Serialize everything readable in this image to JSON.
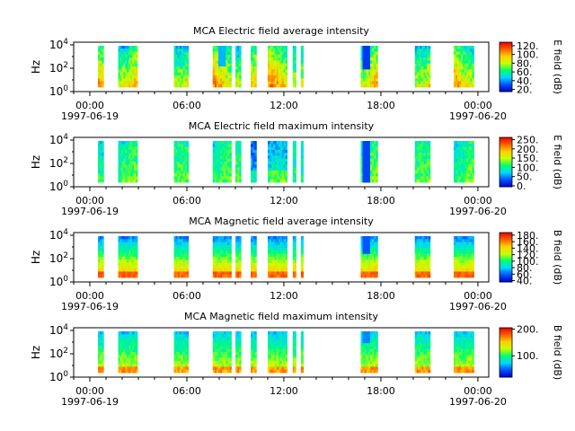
{
  "colorscale": [
    "#0000d0",
    "#0050ff",
    "#00d8ff",
    "#00ff70",
    "#c8ff00",
    "#ffd000",
    "#ff6000",
    "#e80000"
  ],
  "chart_data": [
    {
      "type": "heatmap",
      "title": "MCA  Electric field average intensity",
      "ylabel": "Hz",
      "y_scale": "log",
      "y_ticks": [
        {
          "exp": "0"
        },
        {
          "exp": "2"
        },
        {
          "exp": "4"
        }
      ],
      "x_ticks": [
        "00:00",
        "06:00",
        "12:00",
        "18:00",
        "00:00"
      ],
      "x_dates": [
        "1997-06-19",
        "1997-06-20"
      ],
      "x_range": [
        "1997-06-18 23:00",
        "1997-06-20 00:40"
      ],
      "colorbar": {
        "label": "E field (dB)",
        "range": [
          15,
          128
        ],
        "ticks": [
          "20.",
          "40.",
          "60.",
          "80.",
          "100.",
          "120."
        ]
      },
      "pattern": "elec_avg"
    },
    {
      "type": "heatmap",
      "title": "MCA  Electric field maximum intensity",
      "ylabel": "Hz",
      "y_scale": "log",
      "y_ticks": [
        {
          "exp": "0"
        },
        {
          "exp": "2"
        },
        {
          "exp": "4"
        }
      ],
      "x_ticks": [
        "00:00",
        "06:00",
        "12:00",
        "18:00",
        "00:00"
      ],
      "x_dates": [
        "1997-06-19",
        "1997-06-20"
      ],
      "x_range": [
        "1997-06-18 23:00",
        "1997-06-20 00:40"
      ],
      "colorbar": {
        "label": "E field (dB)",
        "range": [
          -5,
          262
        ],
        "ticks": [
          "0.",
          "50.",
          "100.",
          "150.",
          "200.",
          "250."
        ]
      },
      "pattern": "elec_max"
    },
    {
      "type": "heatmap",
      "title": "MCA  Magnetic field average intensity",
      "ylabel": "Hz",
      "y_scale": "log",
      "y_ticks": [
        {
          "exp": "0"
        },
        {
          "exp": "2"
        },
        {
          "exp": "4"
        }
      ],
      "x_ticks": [
        "00:00",
        "06:00",
        "12:00",
        "18:00",
        "00:00"
      ],
      "x_dates": [
        "1997-06-19",
        "1997-06-20"
      ],
      "x_range": [
        "1997-06-18 23:00",
        "1997-06-20 00:40"
      ],
      "colorbar": {
        "label": "B field (dB)",
        "range": [
          36,
          188
        ],
        "ticks": [
          "40.",
          "60.",
          "80.",
          "100.",
          "120.",
          "140.",
          "160.",
          "180."
        ]
      },
      "pattern": "mag_avg"
    },
    {
      "type": "heatmap",
      "title": "MCA  Magnetic field maximum intensity",
      "ylabel": "Hz",
      "y_scale": "log",
      "y_ticks": [
        {
          "exp": "0"
        },
        {
          "exp": "2"
        },
        {
          "exp": "4"
        }
      ],
      "x_ticks": [
        "00:00",
        "06:00",
        "12:00",
        "18:00",
        "00:00"
      ],
      "x_dates": [
        "1997-06-19",
        "1997-06-20"
      ],
      "x_range": [
        "1997-06-18 23:00",
        "1997-06-20 00:40"
      ],
      "colorbar": {
        "label": "B field (dB)",
        "range": [
          20,
          205
        ],
        "ticks": [
          "100.",
          "200."
        ]
      },
      "pattern": "mag_max"
    }
  ]
}
